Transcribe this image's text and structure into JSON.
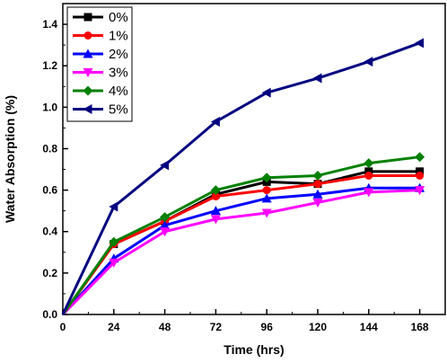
{
  "chart_data": {
    "type": "line",
    "title": "",
    "xlabel": "Time (hrs)",
    "ylabel": "Water Absorption (%)",
    "xlim": [
      0,
      180
    ],
    "ylim": [
      0,
      1.5
    ],
    "x_ticks": [
      0,
      24,
      48,
      72,
      96,
      120,
      144,
      168
    ],
    "y_ticks": [
      0.0,
      0.2,
      0.4,
      0.6,
      0.8,
      1.0,
      1.2,
      1.4
    ],
    "x_tick_labels": [
      "0",
      "24",
      "48",
      "72",
      "96",
      "120",
      "144",
      "168"
    ],
    "y_tick_labels": [
      "0.0",
      "0.2",
      "0.4",
      "0.6",
      "0.8",
      "1.0",
      "1.2",
      "1.4"
    ],
    "grid": false,
    "legend_position": "top-left",
    "x": [
      0,
      24,
      48,
      72,
      96,
      120,
      144,
      168
    ],
    "series": [
      {
        "name": "0%",
        "color": "#000000",
        "marker": "square",
        "values": [
          0,
          0.34,
          0.45,
          0.58,
          0.64,
          0.63,
          0.69,
          0.69
        ]
      },
      {
        "name": "1%",
        "color": "#ff0000",
        "marker": "circle",
        "values": [
          0,
          0.34,
          0.45,
          0.57,
          0.6,
          0.63,
          0.67,
          0.67
        ]
      },
      {
        "name": "2%",
        "color": "#0000ff",
        "marker": "triangle-up",
        "values": [
          0,
          0.27,
          0.43,
          0.5,
          0.56,
          0.58,
          0.61,
          0.61
        ]
      },
      {
        "name": "3%",
        "color": "#ff00ff",
        "marker": "triangle-down",
        "values": [
          0,
          0.25,
          0.4,
          0.46,
          0.49,
          0.54,
          0.59,
          0.6
        ]
      },
      {
        "name": "4%",
        "color": "#008000",
        "marker": "diamond",
        "values": [
          0,
          0.35,
          0.47,
          0.6,
          0.66,
          0.67,
          0.73,
          0.76
        ]
      },
      {
        "name": "5%",
        "color": "#000080",
        "marker": "triangle-left",
        "values": [
          0,
          0.52,
          0.72,
          0.93,
          1.07,
          1.14,
          1.22,
          1.31
        ]
      }
    ]
  }
}
